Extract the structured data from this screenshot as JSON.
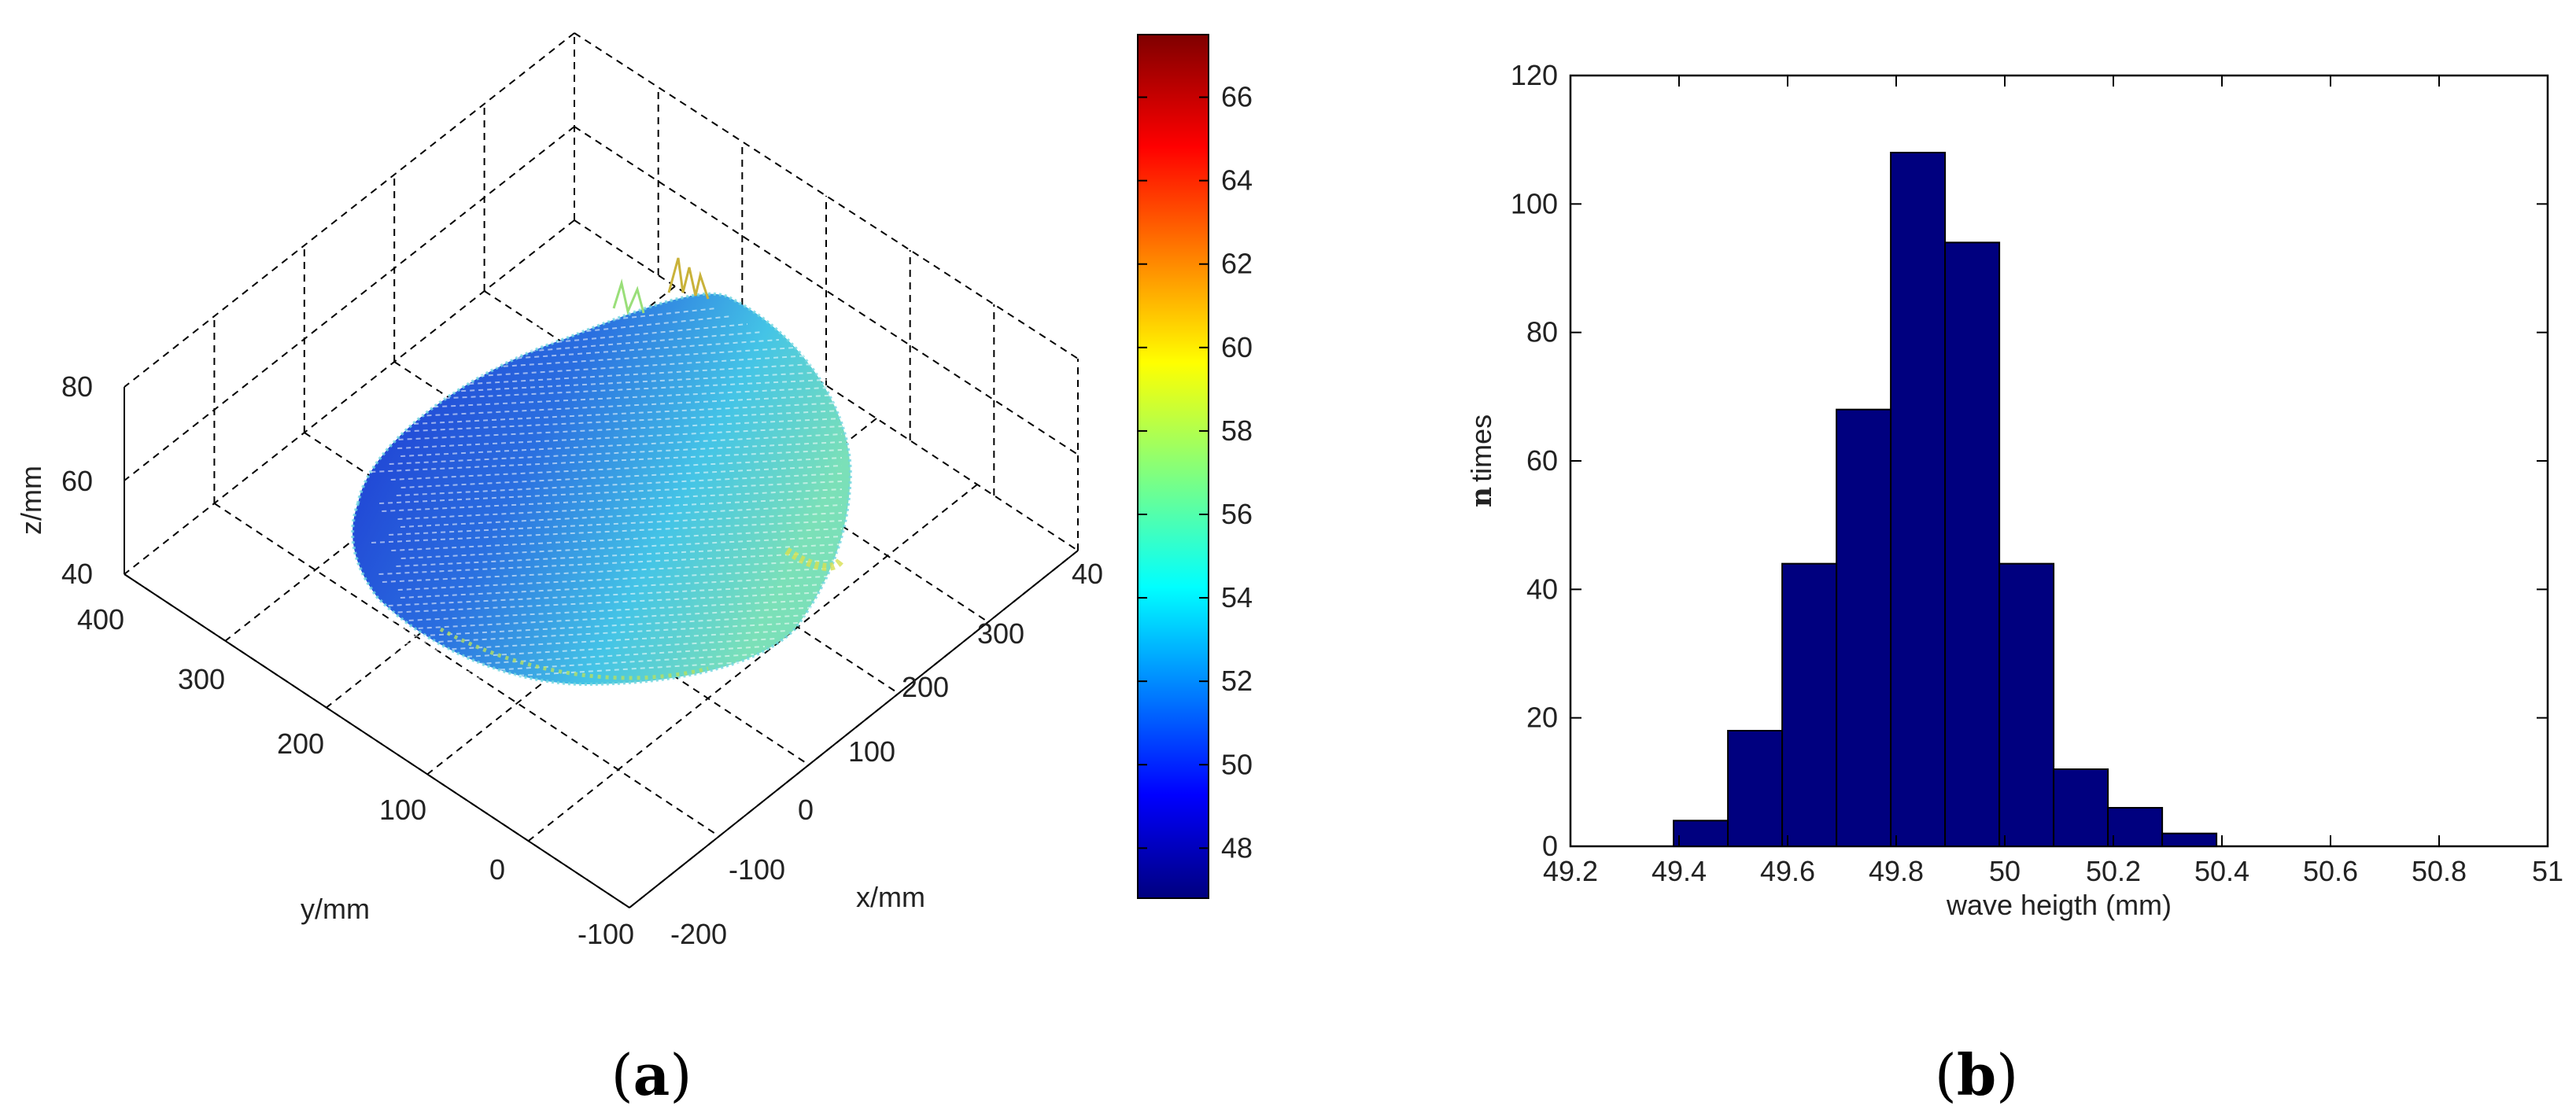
{
  "panels": {
    "a": {
      "open": "(",
      "letter": "a",
      "close": ")"
    },
    "b": {
      "open": "(",
      "letter": "b",
      "close": ")"
    }
  },
  "chart_data": [
    {
      "type": "surface3d",
      "xlabel": "x/mm",
      "ylabel": "y/mm",
      "zlabel": "z/mm",
      "x_ticks": [
        "-200",
        "-100",
        "0",
        "100",
        "200",
        "300",
        "40"
      ],
      "y_ticks": [
        "-100",
        "0",
        "100",
        "200",
        "300",
        "400"
      ],
      "z_ticks": [
        "40",
        "60",
        "80"
      ],
      "xlim": [
        -200,
        400
      ],
      "ylim": [
        -100,
        400
      ],
      "zlim": [
        40,
        80
      ],
      "colorbar": {
        "colormap": "jet",
        "range": [
          46.8,
          67.5
        ],
        "ticks": [
          "48",
          "50",
          "52",
          "54",
          "56",
          "58",
          "60",
          "62",
          "64",
          "66"
        ]
      },
      "surface_description_values": {
        "mean_z": 50,
        "dominant_color_low": "#1a2fd0",
        "dominant_color_high": "#5fd8e8"
      },
      "grid": true
    },
    {
      "type": "bar",
      "xlabel": "wave heigth (mm)",
      "ylabel_prefix": "n",
      "ylabel": "times",
      "bin_edges": [
        49.39,
        49.49,
        49.59,
        49.69,
        49.79,
        49.89,
        49.99,
        50.09,
        50.19,
        50.29,
        50.39,
        50.49,
        50.59,
        50.69
      ],
      "values": [
        4,
        18,
        44,
        68,
        108,
        94,
        44,
        12,
        6,
        2,
        0,
        0,
        0
      ],
      "xlim": [
        49.2,
        51
      ],
      "ylim": [
        0,
        120
      ],
      "x_ticks": [
        "49.2",
        "49.4",
        "49.6",
        "49.8",
        "50",
        "50.2",
        "50.4",
        "50.6",
        "50.8",
        "51"
      ],
      "y_ticks": [
        "0",
        "20",
        "40",
        "60",
        "80",
        "100",
        "120"
      ],
      "bar_color": "#00007f",
      "edge_color": "#000000",
      "grid": false
    }
  ]
}
